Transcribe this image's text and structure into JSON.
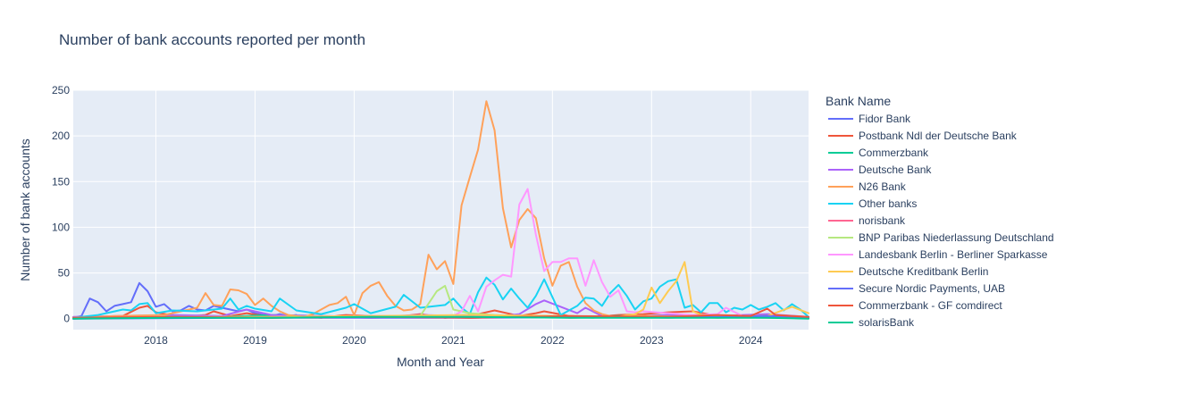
{
  "chart_data": {
    "type": "line",
    "title": "Number of bank accounts reported per month",
    "xlabel": "Month and Year",
    "ylabel": "Number of bank accounts",
    "legend_title": "Bank Name",
    "legend_position": "right",
    "grid": true,
    "xlim": [
      "2017-03-01",
      "2024-08-01"
    ],
    "ylim": [
      -12,
      250
    ],
    "x_ticks": [
      "2018",
      "2019",
      "2020",
      "2021",
      "2022",
      "2023",
      "2024"
    ],
    "y_ticks": [
      0,
      50,
      100,
      150,
      200,
      250
    ],
    "background_color": "#E5ECF6",
    "series": [
      {
        "name": "Fidor Bank",
        "color": "#636EFA",
        "x": [
          "2017-03",
          "2017-04",
          "2017-05",
          "2017-06",
          "2017-07",
          "2017-08",
          "2017-09",
          "2017-10",
          "2017-11",
          "2017-12",
          "2018-01",
          "2018-02",
          "2018-03",
          "2018-04",
          "2018-05",
          "2018-06",
          "2018-07",
          "2018-08",
          "2018-09",
          "2018-10",
          "2018-11",
          "2018-12",
          "2019-01",
          "2019-02",
          "2019-03",
          "2019-04",
          "2019-05",
          "2019-06"
        ],
        "y": [
          1,
          3,
          22,
          18,
          8,
          14,
          16,
          18,
          39,
          30,
          13,
          16,
          8,
          9,
          14,
          10,
          9,
          14,
          12,
          10,
          8,
          10,
          6,
          4,
          3,
          5,
          3,
          4
        ]
      },
      {
        "name": "Postbank Ndl der Deutsche Bank",
        "color": "#EF553B",
        "x": [
          "2017-03",
          "2017-06",
          "2017-09",
          "2017-11",
          "2017-12",
          "2018-01",
          "2018-04",
          "2018-07",
          "2018-08",
          "2018-10",
          "2018-12",
          "2019-03",
          "2019-06",
          "2019-09",
          "2019-12",
          "2020-03",
          "2020-06",
          "2020-09",
          "2020-12",
          "2021-03",
          "2021-06",
          "2021-09",
          "2021-11",
          "2021-12",
          "2022-03",
          "2022-06",
          "2022-09",
          "2022-12",
          "2023-03",
          "2023-06",
          "2023-09",
          "2023-12",
          "2024-03",
          "2024-05",
          "2024-08"
        ],
        "y": [
          0,
          2,
          3,
          12,
          14,
          7,
          2,
          4,
          8,
          3,
          6,
          2,
          3,
          1,
          4,
          3,
          2,
          5,
          1,
          3,
          9,
          3,
          6,
          8,
          3,
          2,
          4,
          5,
          7,
          8,
          3,
          2,
          4,
          2,
          1
        ]
      },
      {
        "name": "Commerzbank",
        "color": "#00CC96",
        "x": [
          "2017-03",
          "2017-09",
          "2018-03",
          "2018-09",
          "2019-03",
          "2019-09",
          "2020-03",
          "2020-09",
          "2021-03",
          "2021-09",
          "2022-03",
          "2022-09",
          "2023-03",
          "2023-09",
          "2024-03",
          "2024-08"
        ],
        "y": [
          1,
          2,
          3,
          2,
          4,
          3,
          2,
          3,
          4,
          3,
          2,
          3,
          2,
          3,
          2,
          1
        ]
      },
      {
        "name": "Deutsche Bank",
        "color": "#AB63FA",
        "x": [
          "2017-03",
          "2017-09",
          "2018-03",
          "2018-09",
          "2018-12",
          "2019-03",
          "2019-09",
          "2020-03",
          "2020-09",
          "2021-03",
          "2021-06",
          "2021-09",
          "2021-11",
          "2021-12",
          "2022-02",
          "2022-04",
          "2022-05",
          "2022-07",
          "2022-09",
          "2023-03",
          "2023-09",
          "2024-03",
          "2024-08"
        ],
        "y": [
          2,
          3,
          4,
          3,
          10,
          4,
          3,
          2,
          4,
          3,
          2,
          5,
          16,
          20,
          13,
          6,
          12,
          3,
          2,
          4,
          3,
          5,
          2
        ]
      },
      {
        "name": "N26 Bank",
        "color": "#FFA15A",
        "x": [
          "2017-03",
          "2017-08",
          "2018-02",
          "2018-06",
          "2018-07",
          "2018-08",
          "2018-09",
          "2018-10",
          "2018-11",
          "2018-12",
          "2019-01",
          "2019-02",
          "2019-03",
          "2019-04",
          "2019-05",
          "2019-06",
          "2019-07",
          "2019-08",
          "2019-09",
          "2019-10",
          "2019-11",
          "2019-12",
          "2020-01",
          "2020-02",
          "2020-03",
          "2020-04",
          "2020-05",
          "2020-06",
          "2020-07",
          "2020-08",
          "2020-09",
          "2020-10",
          "2020-11",
          "2020-12",
          "2021-01",
          "2021-02",
          "2021-03",
          "2021-04",
          "2021-05",
          "2021-06",
          "2021-07",
          "2021-08",
          "2021-09",
          "2021-10",
          "2021-11",
          "2021-12",
          "2022-01",
          "2022-02",
          "2022-03",
          "2022-04",
          "2022-05",
          "2022-06",
          "2022-07",
          "2022-08",
          "2022-09",
          "2022-10",
          "2023-01",
          "2023-06",
          "2023-09",
          "2024-01",
          "2024-08"
        ],
        "y": [
          1,
          3,
          4,
          12,
          28,
          15,
          14,
          32,
          31,
          27,
          15,
          22,
          14,
          8,
          4,
          3,
          2,
          5,
          10,
          15,
          17,
          24,
          4,
          28,
          36,
          40,
          25,
          14,
          9,
          10,
          16,
          70,
          54,
          63,
          38,
          124,
          155,
          185,
          238,
          206,
          121,
          78,
          108,
          120,
          110,
          66,
          36,
          58,
          62,
          35,
          17,
          9,
          5,
          3,
          2,
          4,
          3,
          2,
          1,
          2,
          1
        ]
      },
      {
        "name": "Other banks",
        "color": "#19D3F3",
        "x": [
          "2017-03",
          "2017-06",
          "2017-09",
          "2017-10",
          "2017-11",
          "2017-12",
          "2018-01",
          "2018-03",
          "2018-06",
          "2018-09",
          "2018-10",
          "2018-11",
          "2018-12",
          "2019-01",
          "2019-03",
          "2019-04",
          "2019-06",
          "2019-09",
          "2019-12",
          "2020-01",
          "2020-03",
          "2020-06",
          "2020-07",
          "2020-09",
          "2020-12",
          "2021-01",
          "2021-02",
          "2021-03",
          "2021-04",
          "2021-05",
          "2021-06",
          "2021-07",
          "2021-08",
          "2021-09",
          "2021-10",
          "2021-11",
          "2021-12",
          "2022-02",
          "2022-04",
          "2022-05",
          "2022-06",
          "2022-07",
          "2022-08",
          "2022-09",
          "2022-10",
          "2022-11",
          "2022-12",
          "2023-01",
          "2023-02",
          "2023-03",
          "2023-04",
          "2023-05",
          "2023-06",
          "2023-07",
          "2023-08",
          "2023-09",
          "2023-10",
          "2023-11",
          "2023-12",
          "2024-01",
          "2024-02",
          "2024-03",
          "2024-04",
          "2024-05",
          "2024-06",
          "2024-07",
          "2024-08"
        ],
        "y": [
          1,
          4,
          10,
          9,
          16,
          17,
          6,
          9,
          8,
          11,
          22,
          10,
          14,
          11,
          8,
          22,
          9,
          5,
          12,
          16,
          6,
          13,
          26,
          12,
          15,
          22,
          12,
          5,
          29,
          45,
          37,
          21,
          33,
          22,
          12,
          25,
          43,
          4,
          14,
          23,
          22,
          14,
          28,
          37,
          25,
          10,
          19,
          22,
          35,
          41,
          43,
          12,
          15,
          7,
          17,
          17,
          7,
          12,
          10,
          15,
          10,
          13,
          17,
          9,
          16,
          10,
          2
        ]
      },
      {
        "name": "norisbank",
        "color": "#FF6692",
        "x": [
          "2017-03",
          "2017-09",
          "2018-03",
          "2018-09",
          "2019-03",
          "2019-09",
          "2020-03",
          "2020-09",
          "2021-03",
          "2021-09",
          "2022-03",
          "2022-09",
          "2023-03",
          "2023-09",
          "2024-03",
          "2024-08"
        ],
        "y": [
          0,
          2,
          1,
          2,
          1,
          2,
          1,
          2,
          1,
          2,
          1,
          2,
          1,
          2,
          1,
          1
        ]
      },
      {
        "name": "BNP Paribas Niederlassung Deutschland",
        "color": "#B6E880",
        "x": [
          "2020-06",
          "2020-09",
          "2020-11",
          "2020-12",
          "2021-01",
          "2021-03",
          "2021-06",
          "2021-09",
          "2021-12",
          "2022-03",
          "2022-06"
        ],
        "y": [
          2,
          3,
          30,
          36,
          10,
          6,
          4,
          3,
          2,
          2,
          1
        ]
      },
      {
        "name": "Landesbank Berlin - Berliner Sparkasse",
        "color": "#FF97FF",
        "x": [
          "2017-03",
          "2018-03",
          "2019-03",
          "2020-03",
          "2021-01",
          "2021-02",
          "2021-03",
          "2021-04",
          "2021-05",
          "2021-06",
          "2021-07",
          "2021-08",
          "2021-09",
          "2021-10",
          "2021-11",
          "2021-12",
          "2022-01",
          "2022-02",
          "2022-03",
          "2022-04",
          "2022-05",
          "2022-06",
          "2022-07",
          "2022-08",
          "2022-09",
          "2022-10",
          "2022-11",
          "2022-12",
          "2023-03",
          "2023-06",
          "2023-09",
          "2023-10",
          "2023-12",
          "2024-03",
          "2024-08"
        ],
        "y": [
          1,
          2,
          2,
          3,
          3,
          8,
          25,
          8,
          35,
          42,
          48,
          46,
          125,
          142,
          92,
          52,
          62,
          62,
          66,
          66,
          36,
          64,
          40,
          24,
          31,
          8,
          7,
          8,
          6,
          4,
          5,
          12,
          3,
          2,
          1
        ]
      },
      {
        "name": "Deutsche Kreditbank Berlin",
        "color": "#FECB52",
        "x": [
          "2017-03",
          "2018-03",
          "2019-03",
          "2020-03",
          "2021-03",
          "2022-03",
          "2022-09",
          "2022-11",
          "2022-12",
          "2023-01",
          "2023-02",
          "2023-03",
          "2023-04",
          "2023-05",
          "2023-06",
          "2023-07",
          "2023-09",
          "2024-03",
          "2024-06",
          "2024-08"
        ],
        "y": [
          1,
          2,
          2,
          3,
          4,
          3,
          2,
          5,
          10,
          34,
          17,
          30,
          41,
          62,
          8,
          4,
          3,
          3,
          13,
          6
        ]
      },
      {
        "name": "Secure Nordic Payments, UAB",
        "color": "#636EFA",
        "x": [
          "2017-03",
          "2019-03",
          "2021-03",
          "2023-03",
          "2023-09",
          "2024-03",
          "2024-06",
          "2024-08"
        ],
        "y": [
          0,
          1,
          1,
          2,
          2,
          3,
          2,
          1
        ]
      },
      {
        "name": "Commerzbank - GF comdirect",
        "color": "#EF553B",
        "x": [
          "2017-03",
          "2018-03",
          "2019-03",
          "2020-03",
          "2021-03",
          "2022-03",
          "2023-03",
          "2023-09",
          "2024-01",
          "2024-03",
          "2024-04",
          "2024-06",
          "2024-08"
        ],
        "y": [
          1,
          2,
          1,
          2,
          1,
          3,
          2,
          4,
          3,
          11,
          4,
          3,
          2
        ]
      },
      {
        "name": "solarisBank",
        "color": "#00CC96",
        "x": [
          "2017-03",
          "2018-03",
          "2019-03",
          "2020-03",
          "2021-03",
          "2022-03",
          "2023-03",
          "2024-03",
          "2024-08"
        ],
        "y": [
          0,
          1,
          1,
          2,
          2,
          1,
          1,
          1,
          0
        ]
      }
    ]
  }
}
